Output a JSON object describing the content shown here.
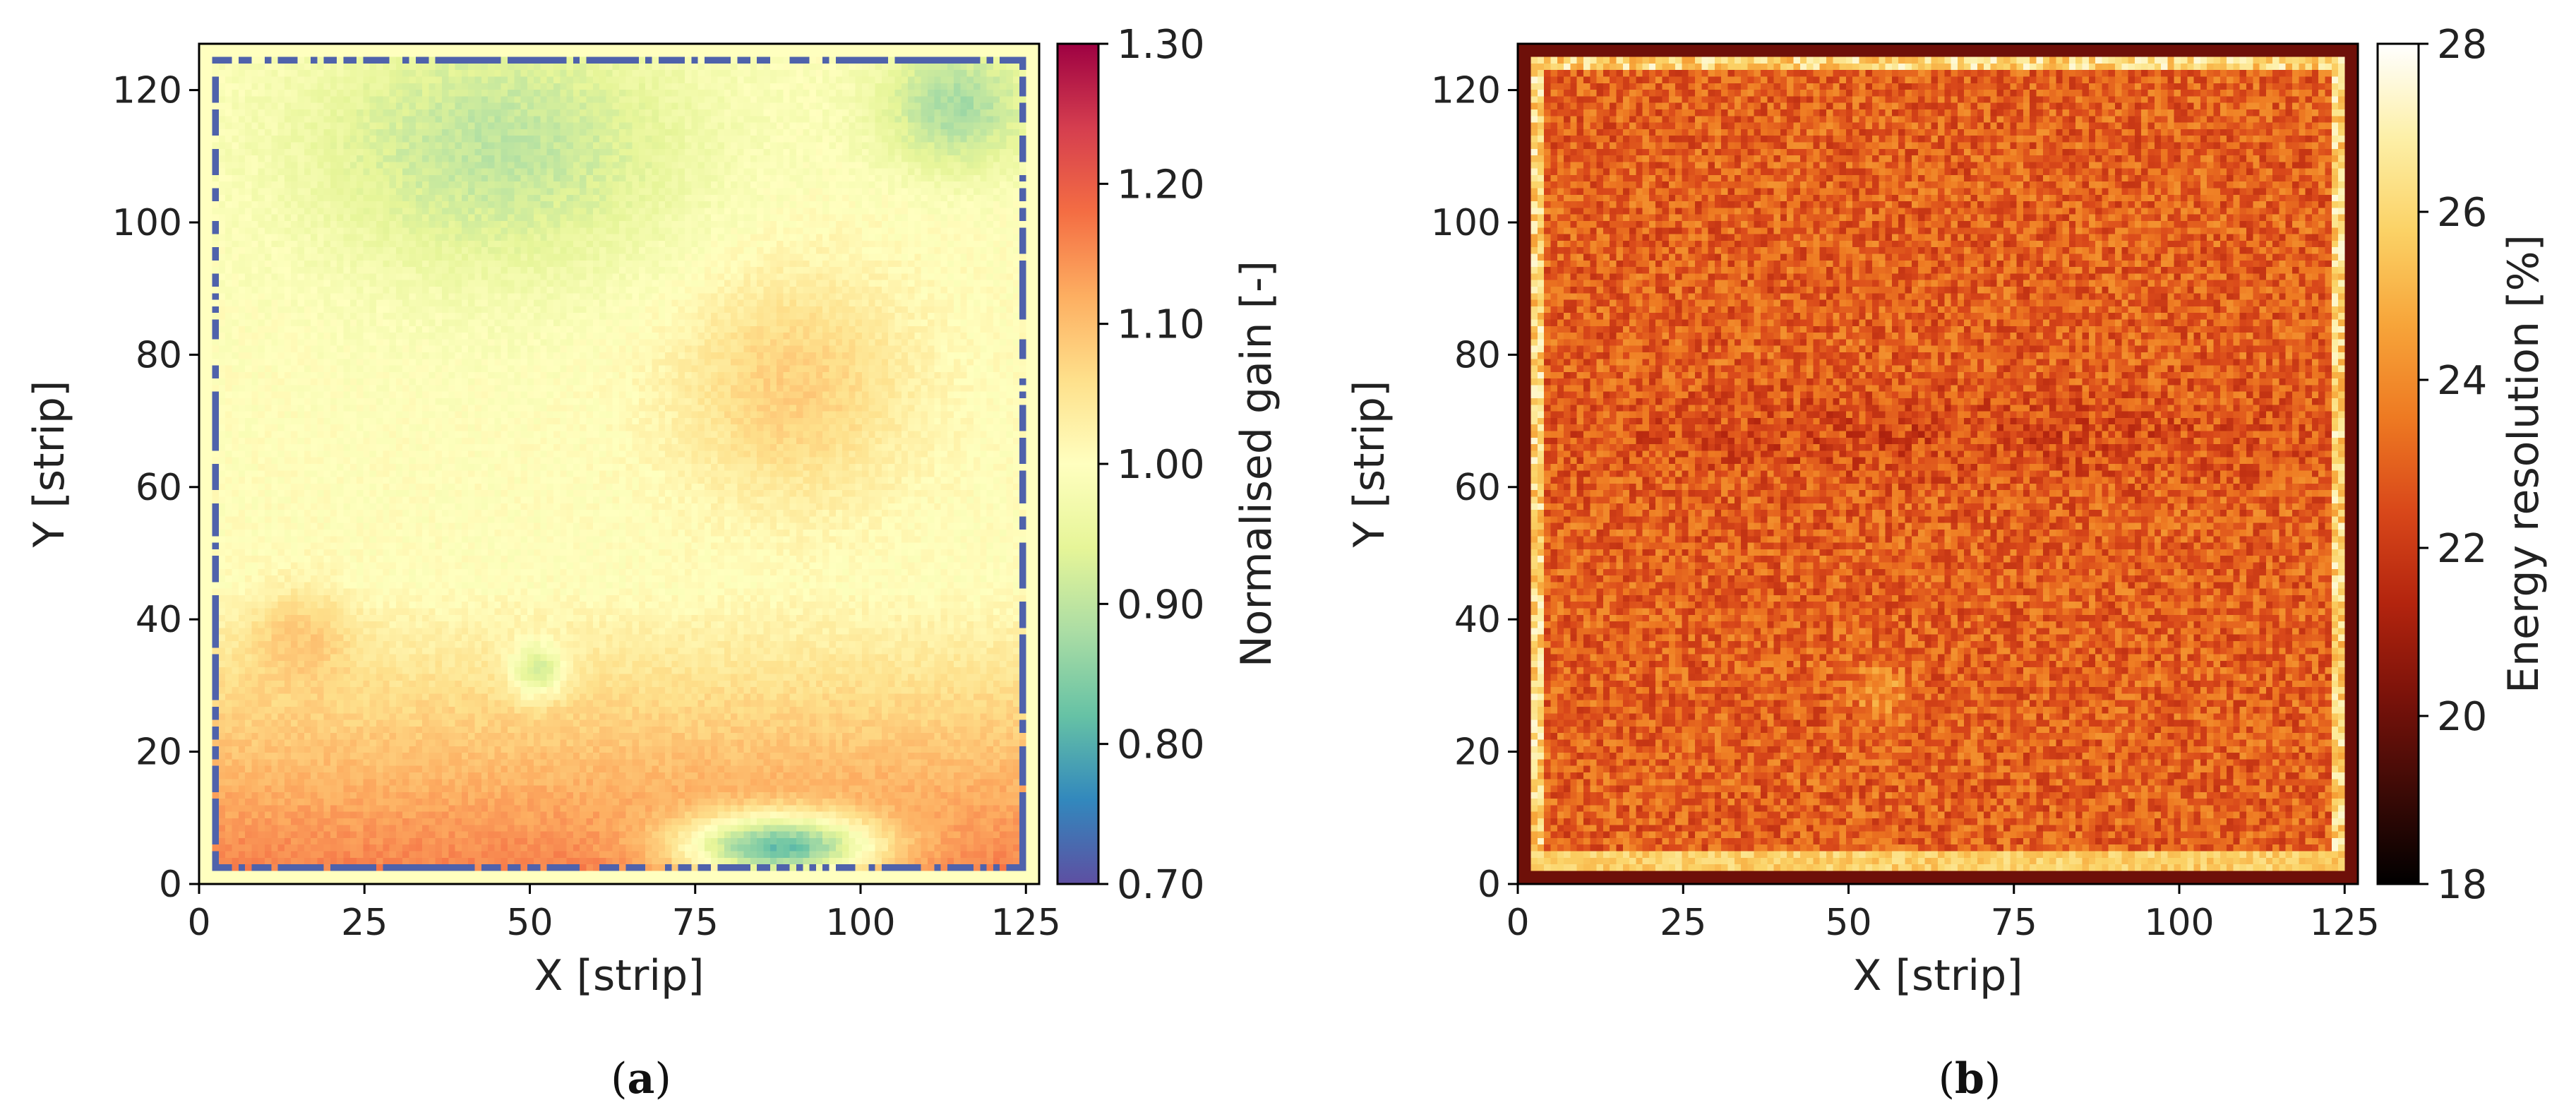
{
  "chart_data": [
    {
      "type": "heatmap",
      "panel_label": "a",
      "title": "",
      "xlabel": "X [strip]",
      "ylabel": "Y [strip]",
      "xlim": [
        0,
        127
      ],
      "ylim": [
        0,
        127
      ],
      "xticks": [
        "0",
        "25",
        "50",
        "75",
        "100",
        "125"
      ],
      "yticks": [
        "0",
        "20",
        "40",
        "60",
        "80",
        "100",
        "120"
      ],
      "grid": 128,
      "colorbar": {
        "label": "Normalised gain [-]",
        "range": [
          0.7,
          1.3
        ],
        "ticks": [
          "0.70",
          "0.80",
          "0.90",
          "1.00",
          "1.10",
          "1.20",
          "1.30"
        ],
        "colormap": [
          "#5e4fa2",
          "#3288bd",
          "#66c2a5",
          "#abdda4",
          "#e6f598",
          "#ffffbf",
          "#fee08b",
          "#fdae61",
          "#f46d43",
          "#d53e4f",
          "#9e0142"
        ]
      },
      "summary": {
        "background_value": 1.0,
        "upper_region_value": 0.9,
        "lower_region_value": 1.15,
        "low_gain_spot_value": 0.78,
        "edge_strip_value": 0.72
      }
    },
    {
      "type": "heatmap",
      "panel_label": "b",
      "title": "",
      "xlabel": "X [strip]",
      "ylabel": "Y [strip]",
      "xlim": [
        0,
        127
      ],
      "ylim": [
        0,
        127
      ],
      "xticks": [
        "0",
        "25",
        "50",
        "75",
        "100",
        "125"
      ],
      "yticks": [
        "0",
        "20",
        "40",
        "60",
        "80",
        "100",
        "120"
      ],
      "grid": 128,
      "colorbar": {
        "label": "Energy resolution [%]",
        "range": [
          18,
          28
        ],
        "ticks": [
          "18",
          "20",
          "22",
          "24",
          "26",
          "28"
        ],
        "colormap": [
          "#000000",
          "#3d0a06",
          "#7a120a",
          "#b3240e",
          "#d9481a",
          "#ee7a22",
          "#f7a53a",
          "#fbd266",
          "#fdf0a8",
          "#ffffff"
        ]
      },
      "summary": {
        "center_value": 23.0,
        "border_value": 20.0,
        "bottom_edge_value": 26.5,
        "noise_amplitude": 1.2
      }
    }
  ]
}
